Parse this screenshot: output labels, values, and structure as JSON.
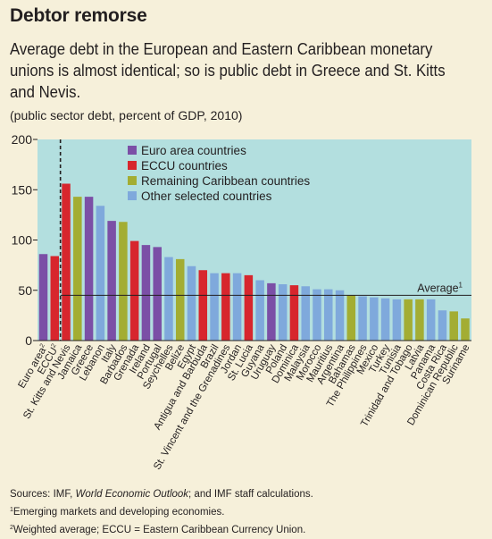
{
  "title": "Debtor remorse",
  "subtitle": "Average debt in the European and Eastern Caribbean monetary unions is almost identical; so is public debt in Greece and St. Kitts and Nevis.",
  "unit_note": "(public sector debt, percent of GDP, 2010)",
  "colors": {
    "plot_bg": "#b3dfdf",
    "page_bg": "#f6f0da",
    "euro": "#7b4fa6",
    "eccu": "#d7262d",
    "caribbean": "#a3ad33",
    "other": "#7fa9dc"
  },
  "chart_data": {
    "type": "bar",
    "ylim": [
      0,
      200
    ],
    "yticks": [
      0,
      50,
      100,
      150,
      200
    ],
    "grid": false,
    "average": {
      "label": "Average",
      "label_sup": "1",
      "value": 45
    },
    "legend": {
      "placement": "top-center",
      "entries": [
        {
          "key": "euro",
          "label": "Euro area countries"
        },
        {
          "key": "eccu",
          "label": "ECCU countries"
        },
        {
          "key": "caribbean",
          "label": "Remaining Caribbean countries"
        },
        {
          "key": "other",
          "label": "Other selected countries"
        }
      ]
    },
    "bars": [
      {
        "label": "Euro area",
        "label_sup": "2",
        "value": 86,
        "group": "euro"
      },
      {
        "label": "ECCU",
        "label_sup": "2",
        "value": 84,
        "group": "eccu"
      },
      {
        "label": "St. Kitts and Nevis",
        "value": 156,
        "group": "eccu"
      },
      {
        "label": "Jamaica",
        "value": 143,
        "group": "caribbean"
      },
      {
        "label": "Greece",
        "value": 143,
        "group": "euro"
      },
      {
        "label": "Lebanon",
        "value": 134,
        "group": "other"
      },
      {
        "label": "Italy",
        "value": 119,
        "group": "euro"
      },
      {
        "label": "Barbados",
        "value": 118,
        "group": "caribbean"
      },
      {
        "label": "Grenada",
        "value": 99,
        "group": "eccu"
      },
      {
        "label": "Ireland",
        "value": 95,
        "group": "euro"
      },
      {
        "label": "Portugal",
        "value": 93,
        "group": "euro"
      },
      {
        "label": "Seychelles",
        "value": 83,
        "group": "other"
      },
      {
        "label": "Belize",
        "value": 81,
        "group": "caribbean"
      },
      {
        "label": "Egypt",
        "value": 74,
        "group": "other"
      },
      {
        "label": "Antigua and Barbuda",
        "value": 70,
        "group": "eccu"
      },
      {
        "label": "Brazil",
        "value": 67,
        "group": "other"
      },
      {
        "label": "St. Vincent and the Grenadines",
        "value": 67,
        "group": "eccu"
      },
      {
        "label": "Jordan",
        "value": 67,
        "group": "other"
      },
      {
        "label": "St. Lucia",
        "value": 65,
        "group": "eccu"
      },
      {
        "label": "Guyana",
        "value": 60,
        "group": "other"
      },
      {
        "label": "Uruguay",
        "value": 57,
        "group": "euro"
      },
      {
        "label": "Poland",
        "value": 56,
        "group": "other"
      },
      {
        "label": "Dominica",
        "value": 55,
        "group": "eccu"
      },
      {
        "label": "Malaysia",
        "value": 54,
        "group": "other"
      },
      {
        "label": "Morocco",
        "value": 51,
        "group": "other"
      },
      {
        "label": "Mauritius",
        "value": 51,
        "group": "other"
      },
      {
        "label": "Argentina",
        "value": 50,
        "group": "other"
      },
      {
        "label": "Bahamas",
        "value": 45,
        "group": "caribbean"
      },
      {
        "label": "The Philippines",
        "value": 44,
        "group": "other"
      },
      {
        "label": "Mexico",
        "value": 43,
        "group": "other"
      },
      {
        "label": "Turkey",
        "value": 42,
        "group": "other"
      },
      {
        "label": "Tunisia",
        "value": 41,
        "group": "other"
      },
      {
        "label": "Trinidad and Tobago",
        "value": 41,
        "group": "caribbean"
      },
      {
        "label": "Latvia",
        "value": 41,
        "group": "caribbean"
      },
      {
        "label": "Panama",
        "value": 41,
        "group": "other"
      },
      {
        "label": "Costa Rica",
        "value": 30,
        "group": "other"
      },
      {
        "label": "Dominican Republic",
        "value": 29,
        "group": "caribbean"
      },
      {
        "label": "Suriname",
        "value": 22,
        "group": "caribbean"
      }
    ]
  },
  "notes": {
    "sources_prefix": "Sources: IMF, ",
    "sources_italic": "World Economic Outlook",
    "sources_suffix": "; and IMF staff calculations.",
    "fn1_mark": "1",
    "fn1": "Emerging markets and developing economies.",
    "fn2_mark": "2",
    "fn2": "Weighted average; ECCU = Eastern Caribbean Currency Union."
  }
}
